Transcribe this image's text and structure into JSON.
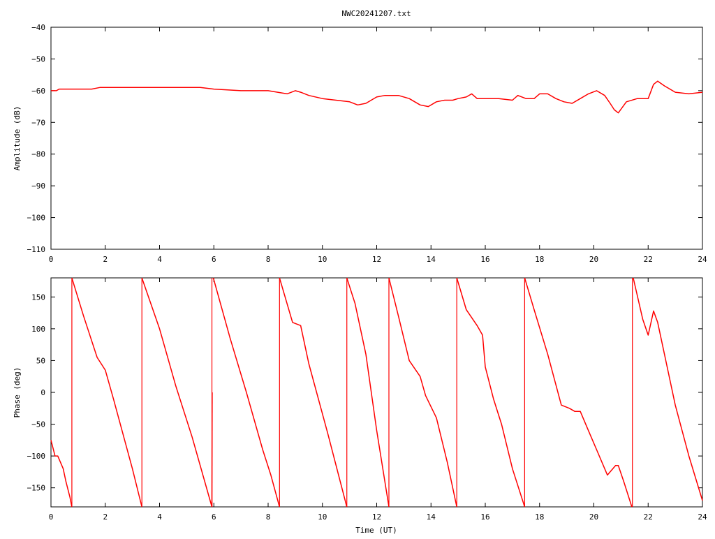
{
  "chart_data": [
    {
      "type": "line",
      "panel": "amplitude",
      "title": "NWC20241207.txt",
      "xlabel": "",
      "ylabel": "Amplitude (dB)",
      "xlim": [
        0,
        24
      ],
      "ylim": [
        -110,
        -40
      ],
      "xticks": [
        0,
        2,
        4,
        6,
        8,
        10,
        12,
        14,
        16,
        18,
        20,
        22,
        24
      ],
      "yticks": [
        -40,
        -50,
        -60,
        -70,
        -80,
        -90,
        -100,
        -110
      ],
      "grid": false,
      "legend": "none",
      "series": [
        {
          "color": "#ff0000",
          "x": [
            0,
            0.2,
            0.3,
            1,
            1.5,
            1.8,
            2.5,
            3,
            4,
            5,
            5.5,
            6,
            7,
            8,
            8.7,
            9,
            9.2,
            9.5,
            10,
            10.5,
            11,
            11.3,
            11.6,
            12,
            12.3,
            12.8,
            13.2,
            13.6,
            13.9,
            14.2,
            14.5,
            14.8,
            15,
            15.3,
            15.5,
            15.7,
            16,
            16.5,
            17,
            17.2,
            17.5,
            17.8,
            18,
            18.3,
            18.6,
            18.9,
            19.2,
            19.5,
            19.8,
            20.1,
            20.4,
            20.6,
            20.75,
            20.9,
            21.2,
            21.6,
            22.0,
            22.2,
            22.35,
            22.6,
            23,
            23.5,
            24
          ],
          "y": [
            -60,
            -60,
            -59.5,
            -59.5,
            -59.5,
            -59,
            -59,
            -59,
            -59,
            -59,
            -59,
            -59.5,
            -60,
            -60,
            -61,
            -60,
            -60.5,
            -61.5,
            -62.5,
            -63,
            -63.5,
            -64.5,
            -64,
            -62,
            -61.5,
            -61.5,
            -62.5,
            -64.5,
            -65,
            -63.5,
            -63,
            -63,
            -62.5,
            -62,
            -61,
            -62.5,
            -62.5,
            -62.5,
            -63,
            -61.5,
            -62.5,
            -62.5,
            -61,
            -61,
            -62.5,
            -63.5,
            -64,
            -62.5,
            -61,
            -60,
            -61.5,
            -64,
            -66,
            -67,
            -63.5,
            -62.5,
            -62.5,
            -58,
            -57,
            -58.5,
            -60.5,
            -61,
            -60.5
          ]
        }
      ]
    },
    {
      "type": "line",
      "panel": "phase",
      "title": "",
      "xlabel": "Time (UT)",
      "ylabel": "Phase (deg)",
      "xlim": [
        0,
        24
      ],
      "ylim": [
        -180,
        180
      ],
      "xticks": [
        0,
        2,
        4,
        6,
        8,
        10,
        12,
        14,
        16,
        18,
        20,
        22,
        24
      ],
      "yticks": [
        -150,
        -100,
        -50,
        0,
        50,
        100,
        150
      ],
      "grid": false,
      "legend": "none",
      "series": [
        {
          "color": "#ff0000",
          "segments": [
            {
              "x": [
                0,
                0.15,
                0.25,
                0.3,
                0.45,
                0.55,
                0.7,
                0.77
              ],
              "y": [
                -75,
                -100,
                -100,
                -105,
                -120,
                -140,
                -165,
                -180
              ]
            },
            {
              "x": [
                0.77,
                1.2,
                1.7,
                2.0,
                2.3,
                3.0,
                3.35
              ],
              "y": [
                180,
                120,
                55,
                35,
                -10,
                -120,
                -180
              ]
            },
            {
              "x": [
                3.35,
                4.0,
                4.6,
                5.2,
                5.93
              ],
              "y": [
                180,
                100,
                10,
                -70,
                -180
              ]
            },
            {
              "x": [
                5.93,
                5.94
              ],
              "y": [
                -180,
                0
              ]
            },
            {
              "x": [
                5.98,
                6.6,
                7.2,
                7.8,
                8.1,
                8.42
              ],
              "y": [
                180,
                85,
                0,
                -90,
                -130,
                -180
              ]
            },
            {
              "x": [
                8.42,
                8.9,
                9.2,
                9.5,
                10.2,
                10.9
              ],
              "y": [
                180,
                110,
                105,
                45,
                -65,
                -180
              ]
            },
            {
              "x": [
                10.9,
                11.2,
                11.6,
                12.0,
                12.45
              ],
              "y": [
                180,
                140,
                60,
                -60,
                -180
              ]
            },
            {
              "x": [
                12.45,
                12.8,
                13.2,
                13.6,
                13.8,
                14.2,
                14.6,
                14.95
              ],
              "y": [
                180,
                120,
                50,
                25,
                -5,
                -40,
                -110,
                -180
              ]
            },
            {
              "x": [
                14.95,
                15.3,
                15.7,
                15.9,
                16.0,
                16.3,
                16.6,
                17.0,
                17.45
              ],
              "y": [
                180,
                130,
                105,
                90,
                40,
                -10,
                -50,
                -120,
                -180
              ]
            },
            {
              "x": [
                17.45,
                17.8,
                18.3,
                18.8,
                19.1,
                19.3,
                19.5,
                19.8,
                20.1,
                20.5,
                20.8,
                20.9,
                21.1,
                21.4
              ],
              "y": [
                180,
                130,
                60,
                -20,
                -25,
                -30,
                -30,
                -60,
                -90,
                -130,
                -115,
                -115,
                -140,
                -180
              ]
            },
            {
              "x": [
                21.45,
                21.8,
                22.0,
                22.2,
                22.35,
                22.6,
                23.0,
                23.5,
                24.0
              ],
              "y": [
                180,
                115,
                90,
                128,
                110,
                60,
                -20,
                -100,
                -170
              ]
            }
          ],
          "vertical_jumps": [
            0.77,
            3.35,
            5.93,
            8.42,
            10.9,
            12.45,
            14.95,
            17.45,
            21.42
          ]
        }
      ]
    }
  ]
}
